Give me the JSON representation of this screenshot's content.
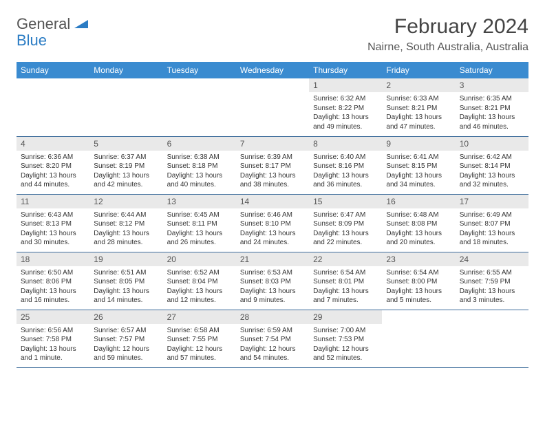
{
  "logo": {
    "general": "General",
    "blue": "Blue"
  },
  "title": "February 2024",
  "location": "Nairne, South Australia, Australia",
  "colors": {
    "header_bg": "#3a8bd0",
    "daynum_bg": "#e9e9e9",
    "row_border": "#3a6a9a",
    "logo_accent": "#2b7cc4"
  },
  "weekdays": [
    "Sunday",
    "Monday",
    "Tuesday",
    "Wednesday",
    "Thursday",
    "Friday",
    "Saturday"
  ],
  "weeks": [
    [
      null,
      null,
      null,
      null,
      {
        "n": "1",
        "sr": "6:32 AM",
        "ss": "8:22 PM",
        "dl": "13 hours and 49 minutes."
      },
      {
        "n": "2",
        "sr": "6:33 AM",
        "ss": "8:21 PM",
        "dl": "13 hours and 47 minutes."
      },
      {
        "n": "3",
        "sr": "6:35 AM",
        "ss": "8:21 PM",
        "dl": "13 hours and 46 minutes."
      }
    ],
    [
      {
        "n": "4",
        "sr": "6:36 AM",
        "ss": "8:20 PM",
        "dl": "13 hours and 44 minutes."
      },
      {
        "n": "5",
        "sr": "6:37 AM",
        "ss": "8:19 PM",
        "dl": "13 hours and 42 minutes."
      },
      {
        "n": "6",
        "sr": "6:38 AM",
        "ss": "8:18 PM",
        "dl": "13 hours and 40 minutes."
      },
      {
        "n": "7",
        "sr": "6:39 AM",
        "ss": "8:17 PM",
        "dl": "13 hours and 38 minutes."
      },
      {
        "n": "8",
        "sr": "6:40 AM",
        "ss": "8:16 PM",
        "dl": "13 hours and 36 minutes."
      },
      {
        "n": "9",
        "sr": "6:41 AM",
        "ss": "8:15 PM",
        "dl": "13 hours and 34 minutes."
      },
      {
        "n": "10",
        "sr": "6:42 AM",
        "ss": "8:14 PM",
        "dl": "13 hours and 32 minutes."
      }
    ],
    [
      {
        "n": "11",
        "sr": "6:43 AM",
        "ss": "8:13 PM",
        "dl": "13 hours and 30 minutes."
      },
      {
        "n": "12",
        "sr": "6:44 AM",
        "ss": "8:12 PM",
        "dl": "13 hours and 28 minutes."
      },
      {
        "n": "13",
        "sr": "6:45 AM",
        "ss": "8:11 PM",
        "dl": "13 hours and 26 minutes."
      },
      {
        "n": "14",
        "sr": "6:46 AM",
        "ss": "8:10 PM",
        "dl": "13 hours and 24 minutes."
      },
      {
        "n": "15",
        "sr": "6:47 AM",
        "ss": "8:09 PM",
        "dl": "13 hours and 22 minutes."
      },
      {
        "n": "16",
        "sr": "6:48 AM",
        "ss": "8:08 PM",
        "dl": "13 hours and 20 minutes."
      },
      {
        "n": "17",
        "sr": "6:49 AM",
        "ss": "8:07 PM",
        "dl": "13 hours and 18 minutes."
      }
    ],
    [
      {
        "n": "18",
        "sr": "6:50 AM",
        "ss": "8:06 PM",
        "dl": "13 hours and 16 minutes."
      },
      {
        "n": "19",
        "sr": "6:51 AM",
        "ss": "8:05 PM",
        "dl": "13 hours and 14 minutes."
      },
      {
        "n": "20",
        "sr": "6:52 AM",
        "ss": "8:04 PM",
        "dl": "13 hours and 12 minutes."
      },
      {
        "n": "21",
        "sr": "6:53 AM",
        "ss": "8:03 PM",
        "dl": "13 hours and 9 minutes."
      },
      {
        "n": "22",
        "sr": "6:54 AM",
        "ss": "8:01 PM",
        "dl": "13 hours and 7 minutes."
      },
      {
        "n": "23",
        "sr": "6:54 AM",
        "ss": "8:00 PM",
        "dl": "13 hours and 5 minutes."
      },
      {
        "n": "24",
        "sr": "6:55 AM",
        "ss": "7:59 PM",
        "dl": "13 hours and 3 minutes."
      }
    ],
    [
      {
        "n": "25",
        "sr": "6:56 AM",
        "ss": "7:58 PM",
        "dl": "13 hours and 1 minute."
      },
      {
        "n": "26",
        "sr": "6:57 AM",
        "ss": "7:57 PM",
        "dl": "12 hours and 59 minutes."
      },
      {
        "n": "27",
        "sr": "6:58 AM",
        "ss": "7:55 PM",
        "dl": "12 hours and 57 minutes."
      },
      {
        "n": "28",
        "sr": "6:59 AM",
        "ss": "7:54 PM",
        "dl": "12 hours and 54 minutes."
      },
      {
        "n": "29",
        "sr": "7:00 AM",
        "ss": "7:53 PM",
        "dl": "12 hours and 52 minutes."
      },
      null,
      null
    ]
  ],
  "labels": {
    "sunrise": "Sunrise:",
    "sunset": "Sunset:",
    "daylight": "Daylight:"
  }
}
